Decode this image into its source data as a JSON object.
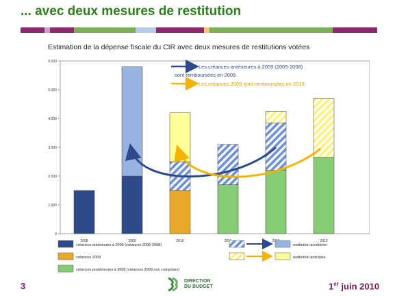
{
  "slide": {
    "title": "... avec deux mesures de restitution",
    "page_number": "3",
    "date_prefix": "1",
    "date_sup": "er",
    "date_suffix": " juin 2010",
    "logo_line1": "DIRECTION",
    "logo_line2": "DU BUDGET",
    "band_colors": [
      "#8b2a6d",
      "#c7a2c0",
      "#8b2a6d",
      "#7fae5a",
      "#b7c9e6",
      "#8b2a6d",
      "#f3c96b",
      "#7fae5a",
      "#8b2a6d"
    ]
  },
  "chart_data": {
    "type": "bar",
    "title": "Estimation de la dépense fiscale du CIR avec deux mesures de restitutions votées",
    "xlabel": "",
    "ylabel": "",
    "ylim": [
      0,
      6000
    ],
    "yticks": [
      "0",
      "1.000",
      "2.000",
      "3.000",
      "4.000",
      "5.000",
      "6.000"
    ],
    "categories": [
      "2008",
      "2009",
      "2010",
      "2011",
      "2012",
      "2013"
    ],
    "series": [
      {
        "name": "créances antérieures à 2009 (créances 2005-2008)",
        "color": "#2d4a8a",
        "values": [
          1500,
          2000,
          0,
          0,
          0,
          0
        ]
      },
      {
        "name": "créances 2009",
        "color": "#e8a92b",
        "values": [
          0,
          0,
          1500,
          0,
          0,
          0
        ]
      },
      {
        "name": "créances postérieures à 2009 (créances 2009 non comprises)",
        "color": "#86cc74",
        "values": [
          0,
          0,
          0,
          1700,
          2200,
          2650
        ]
      },
      {
        "name": "restitution accélérée",
        "color": "#99b3e0",
        "values": [
          0,
          3800,
          1000,
          1400,
          1650,
          0
        ]
      },
      {
        "name": "restitution anticipée",
        "color": "#ffff99",
        "values": [
          0,
          0,
          1700,
          0,
          400,
          2050
        ]
      }
    ],
    "hatched": [
      [
        false,
        false,
        false,
        false,
        false,
        false
      ],
      [
        false,
        false,
        false,
        false,
        false,
        false
      ],
      [
        false,
        false,
        false,
        false,
        false,
        false
      ],
      [
        false,
        false,
        true,
        true,
        true,
        false
      ],
      [
        false,
        false,
        false,
        false,
        true,
        true
      ]
    ],
    "annotations": {
      "blue_line1": "Les créances antérieures à 2009 (2005-2008)",
      "blue_line2": "sont remboursées en 2009.",
      "yellow_line": "Les créances 2009 sont remboursées en 2010."
    },
    "legend_placement": "bottom",
    "grid": false
  }
}
